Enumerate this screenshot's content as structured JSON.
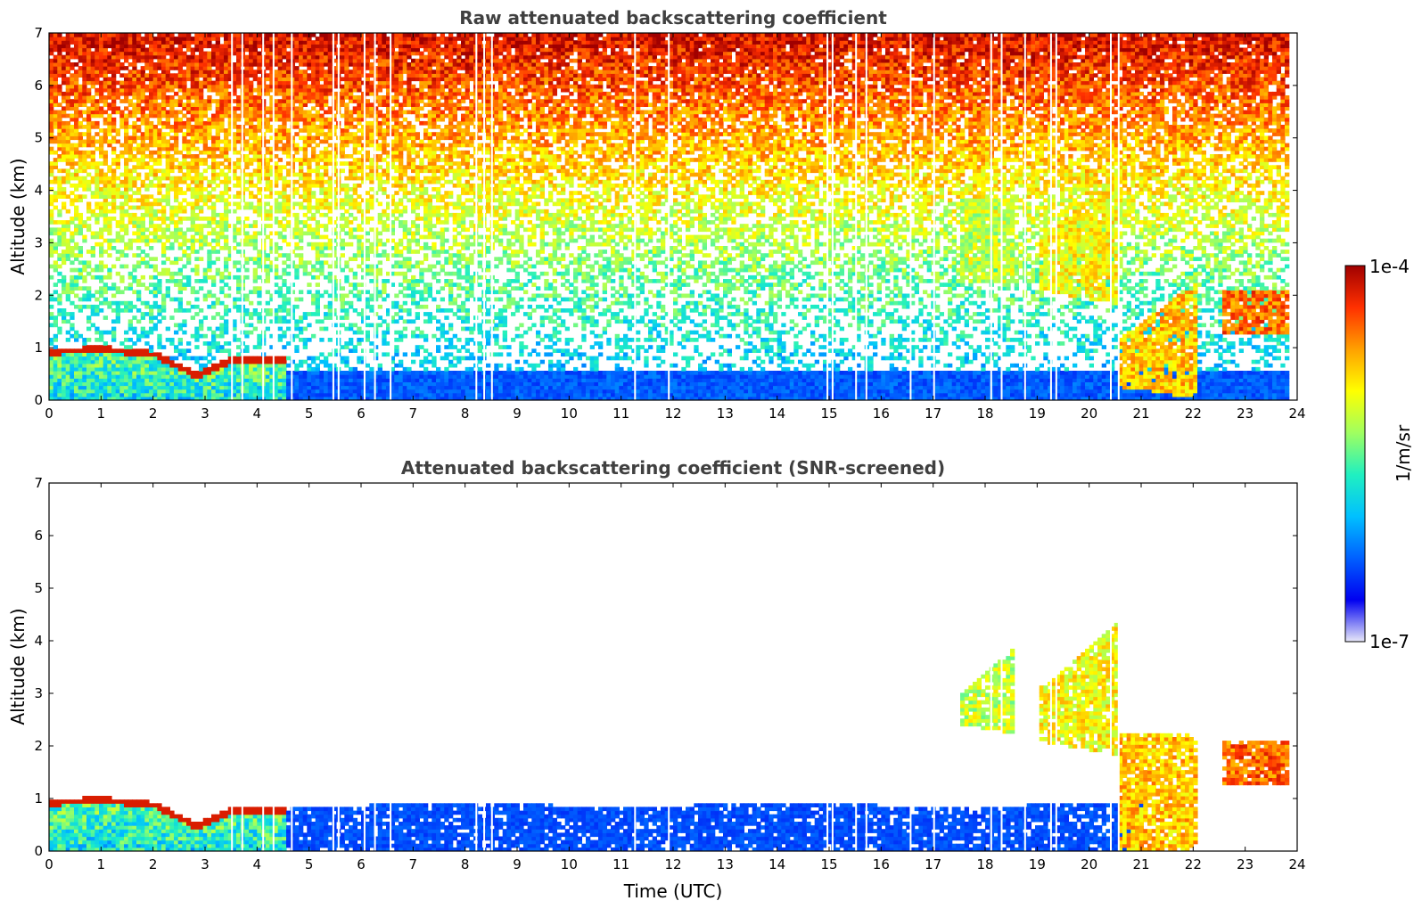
{
  "chart_data": [
    {
      "type": "heatmap",
      "title": "Raw attenuated backscattering coefficient",
      "xlabel": "",
      "ylabel": "Altitude (km)",
      "xlim": [
        0,
        24
      ],
      "ylim": [
        0,
        7
      ],
      "xticks": [
        "0",
        "1",
        "2",
        "3",
        "4",
        "5",
        "6",
        "7",
        "8",
        "9",
        "10",
        "11",
        "12",
        "13",
        "14",
        "15",
        "16",
        "17",
        "18",
        "19",
        "20",
        "21",
        "22",
        "23",
        "24"
      ],
      "yticks": [
        "0",
        "1",
        "2",
        "3",
        "4",
        "5",
        "6",
        "7"
      ],
      "features": [
        {
          "desc": "boundary layer aerosol top",
          "t": [
            0,
            1,
            2,
            2.8,
            3.5,
            4.4
          ],
          "z": [
            0.95,
            1.0,
            0.9,
            0.5,
            0.8,
            0.8
          ],
          "log10_beta": -4.2
        },
        {
          "desc": "cloud",
          "t": [
            17.5,
            18.5
          ],
          "z": [
            2.2,
            3.8
          ],
          "log10_beta": -5.2
        },
        {
          "desc": "cloud",
          "t": [
            19.0,
            20.5
          ],
          "z": [
            1.8,
            4.3
          ],
          "log10_beta": -5.0
        },
        {
          "desc": "cloud",
          "t": [
            20.5,
            22.0
          ],
          "z": [
            0.0,
            2.2
          ],
          "log10_beta": -4.8
        },
        {
          "desc": "cloud",
          "t": [
            22.5,
            23.8
          ],
          "z": [
            1.2,
            2.1
          ],
          "log10_beta": -4.5
        }
      ]
    },
    {
      "type": "heatmap",
      "title": "Attenuated backscattering coefficient (SNR-screened)",
      "xlabel": "Time (UTC)",
      "ylabel": "Altitude (km)",
      "xlim": [
        0,
        24
      ],
      "ylim": [
        0,
        7
      ],
      "xticks": [
        "0",
        "1",
        "2",
        "3",
        "4",
        "5",
        "6",
        "7",
        "8",
        "9",
        "10",
        "11",
        "12",
        "13",
        "14",
        "15",
        "16",
        "17",
        "18",
        "19",
        "20",
        "21",
        "22",
        "23",
        "24"
      ],
      "yticks": [
        "0",
        "1",
        "2",
        "3",
        "4",
        "5",
        "6",
        "7"
      ],
      "features": [
        {
          "desc": "boundary layer aerosol top",
          "t": [
            0,
            1,
            2,
            2.8,
            3.5,
            4.4
          ],
          "z": [
            0.95,
            1.0,
            0.9,
            0.5,
            0.8,
            0.8
          ],
          "log10_beta": -4.2
        },
        {
          "desc": "screened aerosol layer",
          "t": [
            4.5,
            21.0
          ],
          "z": [
            0.0,
            0.8
          ],
          "log10_beta": -6.4
        },
        {
          "desc": "cloud",
          "t": [
            17.5,
            18.5
          ],
          "z": [
            2.2,
            3.8
          ],
          "log10_beta": -5.2
        },
        {
          "desc": "cloud",
          "t": [
            19.0,
            20.5
          ],
          "z": [
            1.8,
            4.3
          ],
          "log10_beta": -5.0
        },
        {
          "desc": "cloud",
          "t": [
            20.5,
            22.0
          ],
          "z": [
            0.0,
            2.2
          ],
          "log10_beta": -4.8
        },
        {
          "desc": "cloud",
          "t": [
            22.5,
            23.8
          ],
          "z": [
            1.2,
            2.1
          ],
          "log10_beta": -4.5
        }
      ]
    }
  ],
  "colorbar": {
    "label": "1/m/sr",
    "max_label": "1e-4",
    "min_label": "1e-7",
    "scale": "log",
    "range_log10": [
      -7,
      -4
    ],
    "colormap": [
      "#e8e8f8",
      "#0000f0",
      "#0060ff",
      "#00c0ff",
      "#20f0c0",
      "#a0ff60",
      "#ffff00",
      "#ffa000",
      "#ff3000",
      "#a00000"
    ]
  }
}
